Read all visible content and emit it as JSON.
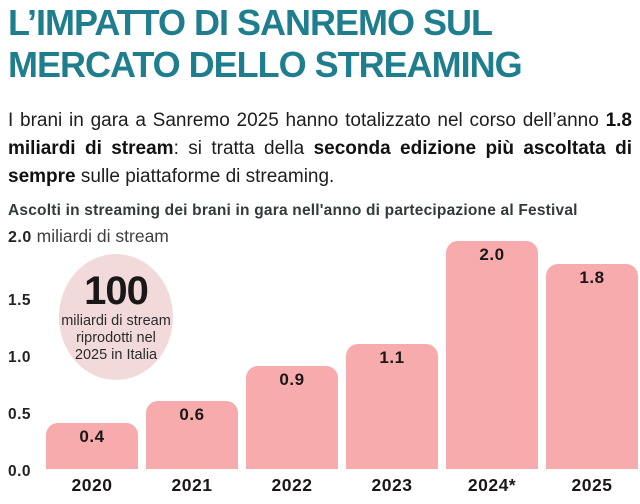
{
  "header": {
    "title_line1": "L’IMPATTO DI SANREMO SUL",
    "title_line2": "MERCATO DELLO STREAMING"
  },
  "intro": {
    "p1": "I brani in gara a Sanremo 2025 hanno totalizzato nel corso dell’anno ",
    "b1": "1.8 miliardi di stream",
    "p2": ": si tratta della ",
    "b2": "seconda edizione più ascoltata di sempre",
    "p3": " sulle piattaforme di streaming."
  },
  "chart_data": {
    "type": "bar",
    "title": "Ascolti in streaming dei brani in gara nell'anno di partecipazione al Festival",
    "categories": [
      "2020",
      "2021",
      "2022",
      "2023",
      "2024*",
      "2025"
    ],
    "values": [
      0.4,
      0.6,
      0.9,
      1.1,
      2.0,
      1.8
    ],
    "ylabel": "miliardi di stream",
    "ylim": [
      0,
      2.0
    ],
    "ytick_top": "2.0",
    "yticks_shown": [
      1.5,
      1.0,
      0.5,
      0.0
    ],
    "grid": false,
    "legend": "none",
    "bar_color": "#f8abad",
    "annotation": {
      "value": "100",
      "lines": [
        "miliardi di stream",
        "riprodotti nel",
        "2025 in Italia"
      ]
    }
  },
  "colors": {
    "title_teal": "#1f7e8e",
    "bar_pink": "#f8abad",
    "circle_pink": "#f2dadb",
    "text_dark": "#1d1d1b"
  }
}
